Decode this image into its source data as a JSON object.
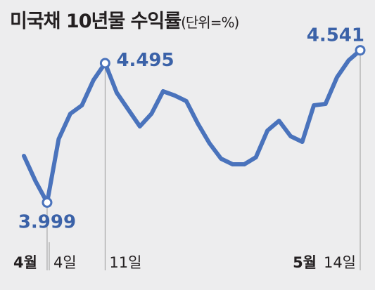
{
  "title": "미국채 10년물 수익률",
  "unit": "(단위=%)",
  "colors": {
    "line": "#4a73bc",
    "label": "#3b62a8",
    "text": "#231f20",
    "guide": "#9a9a9a",
    "background": "#ededee"
  },
  "chart_data": {
    "type": "line",
    "title": "미국채 10년물 수익률",
    "unit": "%",
    "x": [
      0,
      1,
      2,
      3,
      4,
      5,
      6,
      7,
      8,
      9,
      10,
      11,
      12,
      13,
      14,
      15,
      16,
      17,
      18,
      19,
      20,
      21,
      22,
      23,
      24,
      25,
      26,
      27,
      28,
      29
    ],
    "values": [
      4.165,
      4.075,
      3.999,
      4.225,
      4.315,
      4.345,
      4.435,
      4.495,
      4.39,
      4.33,
      4.27,
      4.315,
      4.395,
      4.38,
      4.36,
      4.28,
      4.21,
      4.155,
      4.135,
      4.135,
      4.16,
      4.255,
      4.29,
      4.235,
      4.215,
      4.345,
      4.35,
      4.445,
      4.505,
      4.541
    ],
    "ylim": [
      3.9,
      4.6
    ],
    "highlights": [
      {
        "index": 2,
        "label": "3.999"
      },
      {
        "index": 7,
        "label": "4.495"
      },
      {
        "index": 29,
        "label": "4.541"
      }
    ],
    "x_labels": [
      {
        "index": 0,
        "month": "4월",
        "day": "4일"
      },
      {
        "index": 7,
        "month": "",
        "day": "11일"
      },
      {
        "index": 29,
        "month": "5월",
        "day": "14일"
      }
    ]
  }
}
